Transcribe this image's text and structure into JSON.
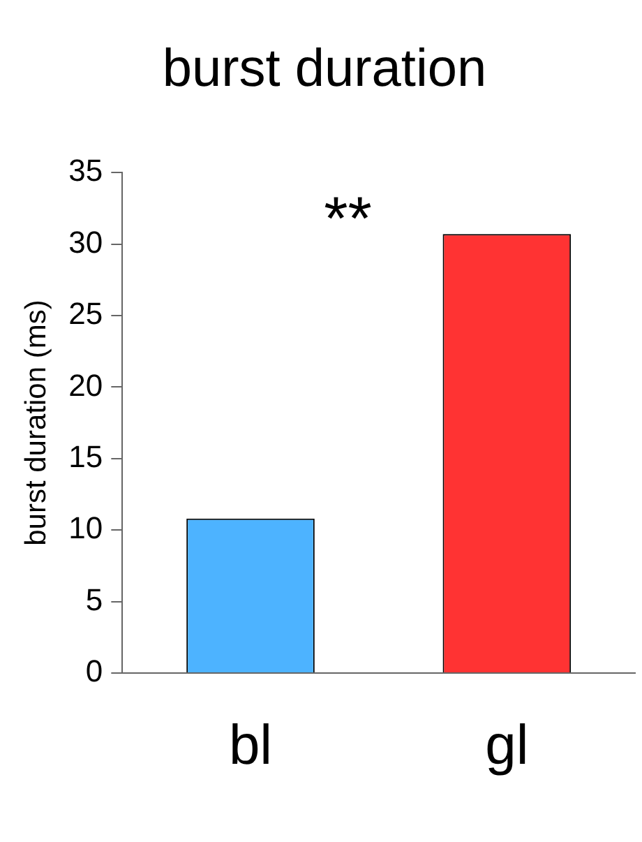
{
  "chart_data": {
    "type": "bar",
    "title": "burst duration",
    "ylabel": "burst duration (ms)",
    "categories": [
      "bl",
      "gl"
    ],
    "values": [
      10.8,
      30.7
    ],
    "colors": [
      "#4db3ff",
      "#ff3333"
    ],
    "ylim": [
      0,
      35
    ],
    "yticks": [
      0,
      5,
      10,
      15,
      20,
      25,
      30,
      35
    ],
    "grid": false,
    "legend": false,
    "annotations": [
      "**"
    ]
  }
}
